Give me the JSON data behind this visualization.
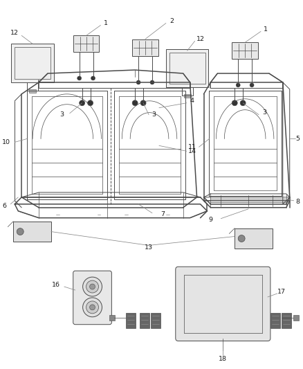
{
  "bg_color": "#ffffff",
  "line_color": "#4a4a4a",
  "label_color": "#1a1a1a",
  "leader_color": "#888888",
  "figsize": [
    4.38,
    5.33
  ],
  "dpi": 100,
  "label_fs": 6.8
}
